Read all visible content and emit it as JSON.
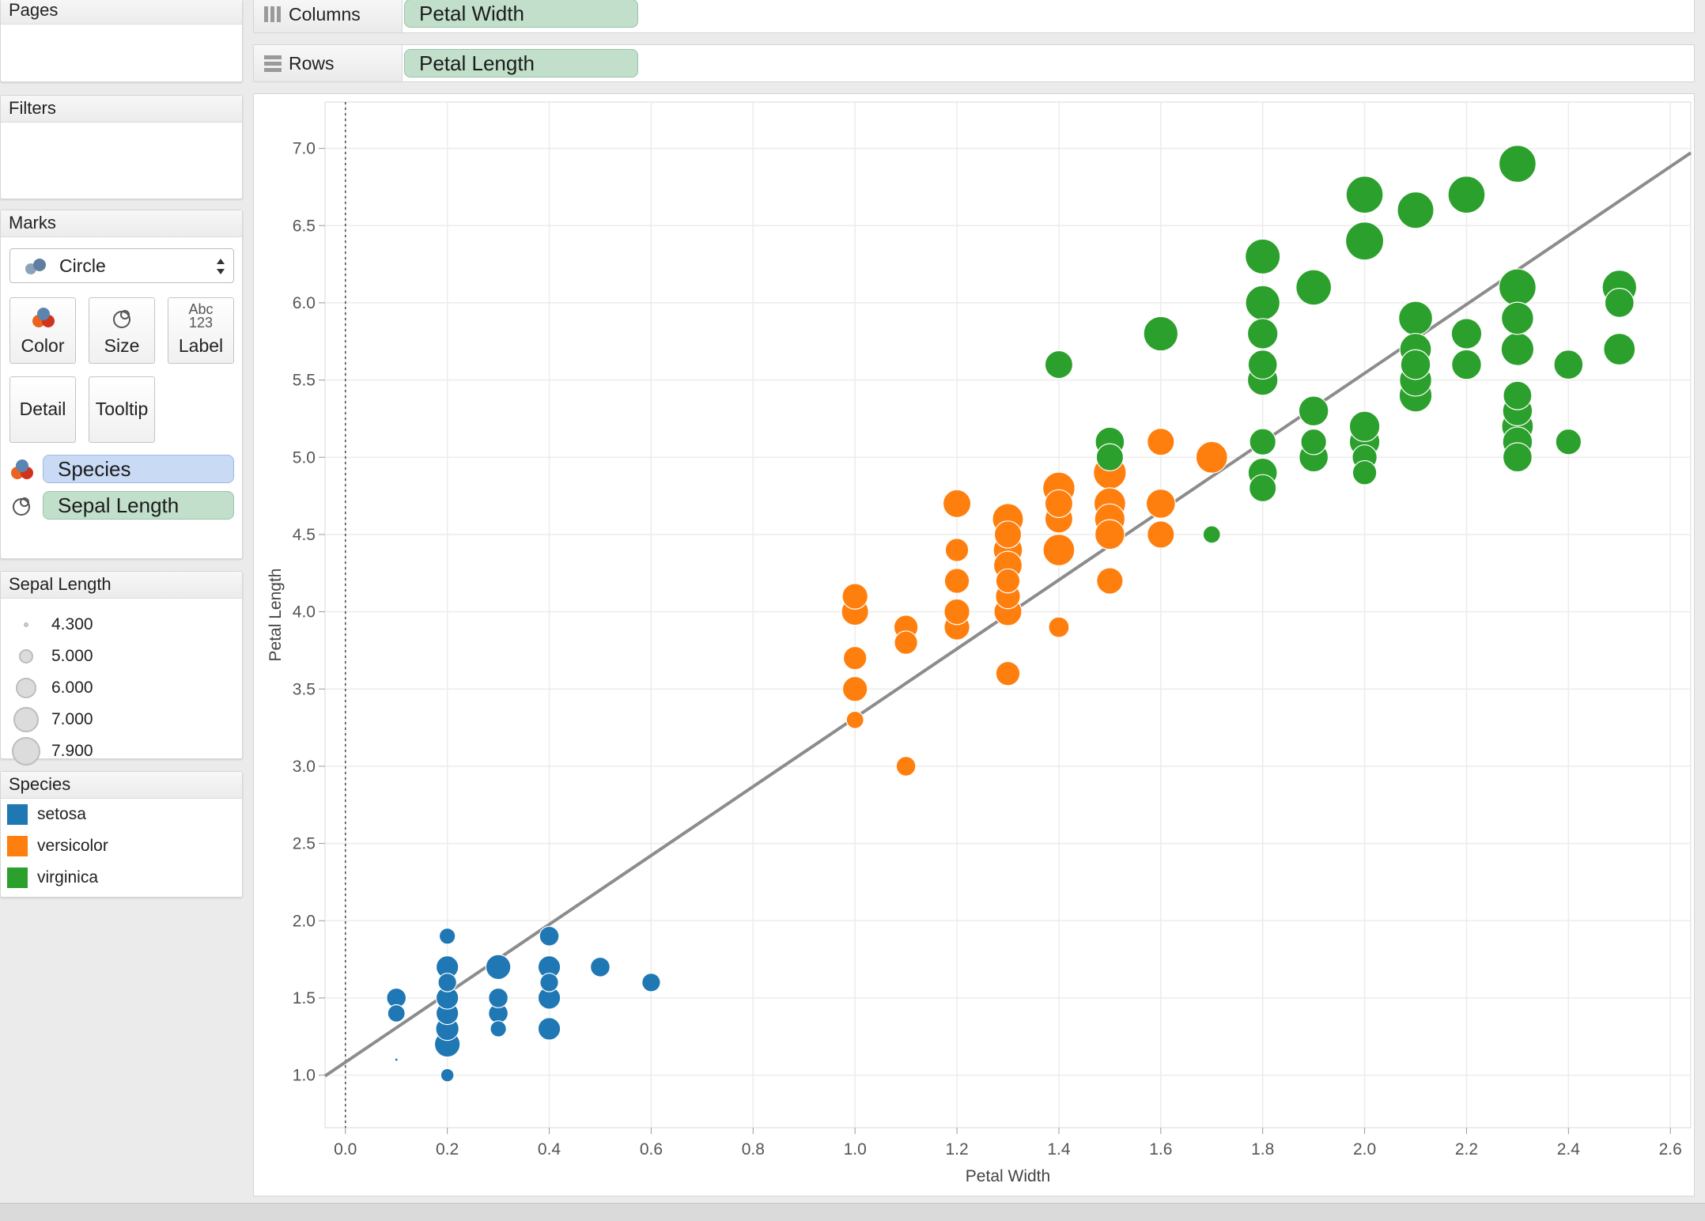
{
  "pages_card": {
    "title": "Pages"
  },
  "filters_card": {
    "title": "Filters"
  },
  "marks_card": {
    "title": "Marks",
    "mark_type": "Circle",
    "buttons": {
      "color": "Color",
      "size": "Size",
      "label": "Label",
      "label_icon_top": "Abc",
      "label_icon_bottom": "123",
      "detail": "Detail",
      "tooltip": "Tooltip"
    },
    "fields": {
      "color_field": "Species",
      "size_field": "Sepal Length"
    }
  },
  "size_legend": {
    "title": "Sepal Length",
    "items": [
      "4.300",
      "5.000",
      "6.000",
      "7.000",
      "7.900"
    ]
  },
  "species_legend": {
    "title": "Species",
    "items": [
      {
        "label": "setosa",
        "color": "#1f77b4"
      },
      {
        "label": "versicolor",
        "color": "#ff7f0e"
      },
      {
        "label": "virginica",
        "color": "#2ca02c"
      }
    ]
  },
  "shelves": {
    "columns_label": "Columns",
    "columns_pill": "Petal Width",
    "rows_label": "Rows",
    "rows_pill": "Petal Length"
  },
  "chart_data": {
    "type": "scatter",
    "xlabel": "Petal Width",
    "ylabel": "Petal Length",
    "xlim": [
      -0.04,
      2.64
    ],
    "ylim": [
      0.66,
      7.3
    ],
    "xticks": [
      0.0,
      0.2,
      0.4,
      0.6,
      0.8,
      1.0,
      1.2,
      1.4,
      1.6,
      1.8,
      2.0,
      2.2,
      2.4,
      2.6
    ],
    "yticks": [
      1.0,
      1.5,
      2.0,
      2.5,
      3.0,
      3.5,
      4.0,
      4.5,
      5.0,
      5.5,
      6.0,
      6.5,
      7.0
    ],
    "size_field": "Sepal Length",
    "size_range": [
      4.3,
      7.9
    ],
    "trend_line": {
      "intercept": 1.084,
      "slope": 2.23,
      "color": "#8c8c8c"
    },
    "zero_line_x": 0.0,
    "grid": true,
    "series": [
      {
        "name": "setosa",
        "color": "#1f77b4",
        "points": [
          [
            0.1,
            1.1,
            4.3
          ],
          [
            0.1,
            1.4,
            4.9
          ],
          [
            0.1,
            1.5,
            5.1
          ],
          [
            0.2,
            1.0,
            4.6
          ],
          [
            0.2,
            1.2,
            5.8
          ],
          [
            0.2,
            1.3,
            5.5
          ],
          [
            0.2,
            1.4,
            5.4
          ],
          [
            0.2,
            1.5,
            5.4
          ],
          [
            0.2,
            1.6,
            5.0
          ],
          [
            0.2,
            1.7,
            5.4
          ],
          [
            0.2,
            1.9,
            4.8
          ],
          [
            0.3,
            1.3,
            4.8
          ],
          [
            0.3,
            1.4,
            5.1
          ],
          [
            0.3,
            1.5,
            5.1
          ],
          [
            0.3,
            1.7,
            5.7
          ],
          [
            0.4,
            1.3,
            5.4
          ],
          [
            0.4,
            1.5,
            5.4
          ],
          [
            0.4,
            1.6,
            5.0
          ],
          [
            0.4,
            1.7,
            5.4
          ],
          [
            0.4,
            1.9,
            5.1
          ],
          [
            0.5,
            1.7,
            5.1
          ],
          [
            0.6,
            1.6,
            5.0
          ]
        ]
      },
      {
        "name": "versicolor",
        "color": "#ff7f0e",
        "points": [
          [
            1.0,
            3.3,
            4.9
          ],
          [
            1.0,
            3.5,
            5.7
          ],
          [
            1.0,
            3.7,
            5.5
          ],
          [
            1.0,
            4.0,
            6.0
          ],
          [
            1.0,
            4.1,
            5.8
          ],
          [
            1.1,
            3.0,
            5.1
          ],
          [
            1.1,
            3.8,
            5.5
          ],
          [
            1.1,
            3.9,
            5.6
          ],
          [
            1.2,
            3.9,
            5.8
          ],
          [
            1.2,
            4.0,
            5.8
          ],
          [
            1.2,
            4.2,
            5.7
          ],
          [
            1.2,
            4.4,
            5.5
          ],
          [
            1.2,
            4.7,
            6.1
          ],
          [
            1.3,
            3.6,
            5.6
          ],
          [
            1.3,
            4.0,
            6.1
          ],
          [
            1.3,
            4.1,
            5.7
          ],
          [
            1.3,
            4.2,
            5.6
          ],
          [
            1.3,
            4.3,
            6.2
          ],
          [
            1.3,
            4.4,
            6.3
          ],
          [
            1.3,
            4.5,
            6.0
          ],
          [
            1.3,
            4.6,
            6.6
          ],
          [
            1.4,
            3.9,
            5.2
          ],
          [
            1.4,
            4.4,
            6.7
          ],
          [
            1.4,
            4.6,
            6.1
          ],
          [
            1.4,
            4.7,
            6.1
          ],
          [
            1.4,
            4.8,
            6.8
          ],
          [
            1.5,
            4.2,
            5.9
          ],
          [
            1.5,
            4.5,
            6.4
          ],
          [
            1.5,
            4.6,
            6.5
          ],
          [
            1.5,
            4.7,
            6.7
          ],
          [
            1.5,
            4.9,
            6.9
          ],
          [
            1.6,
            4.5,
            6.0
          ],
          [
            1.6,
            4.7,
            6.3
          ],
          [
            1.6,
            5.1,
            6.0
          ],
          [
            1.7,
            5.0,
            6.7
          ],
          [
            1.8,
            4.8,
            5.9
          ]
        ]
      },
      {
        "name": "virginica",
        "color": "#2ca02c",
        "points": [
          [
            1.4,
            5.6,
            6.1
          ],
          [
            1.5,
            5.0,
            6.0
          ],
          [
            1.5,
            5.1,
            6.3
          ],
          [
            1.6,
            5.8,
            7.2
          ],
          [
            1.7,
            4.5,
            4.9
          ],
          [
            1.8,
            4.8,
            6.0
          ],
          [
            1.8,
            4.9,
            6.3
          ],
          [
            1.8,
            5.1,
            5.9
          ],
          [
            1.8,
            5.5,
            6.5
          ],
          [
            1.8,
            5.6,
            6.3
          ],
          [
            1.8,
            5.8,
            6.5
          ],
          [
            1.8,
            6.0,
            7.2
          ],
          [
            1.8,
            6.3,
            7.3
          ],
          [
            1.9,
            5.0,
            6.3
          ],
          [
            1.9,
            5.1,
            5.8
          ],
          [
            1.9,
            5.3,
            6.4
          ],
          [
            1.9,
            6.1,
            7.4
          ],
          [
            2.0,
            4.9,
            5.6
          ],
          [
            2.0,
            5.0,
            5.7
          ],
          [
            2.0,
            5.1,
            6.5
          ],
          [
            2.0,
            5.2,
            6.5
          ],
          [
            2.0,
            6.4,
            7.9
          ],
          [
            2.0,
            6.7,
            7.7
          ],
          [
            2.1,
            5.4,
            6.9
          ],
          [
            2.1,
            5.5,
            6.8
          ],
          [
            2.1,
            5.6,
            6.4
          ],
          [
            2.1,
            5.7,
            6.7
          ],
          [
            2.1,
            5.9,
            7.1
          ],
          [
            2.1,
            6.6,
            7.6
          ],
          [
            2.2,
            5.6,
            6.4
          ],
          [
            2.2,
            5.8,
            6.5
          ],
          [
            2.2,
            6.7,
            7.7
          ],
          [
            2.3,
            5.0,
            6.3
          ],
          [
            2.3,
            5.1,
            6.4
          ],
          [
            2.3,
            5.2,
            6.7
          ],
          [
            2.3,
            5.3,
            6.4
          ],
          [
            2.3,
            5.4,
            6.2
          ],
          [
            2.3,
            5.7,
            6.9
          ],
          [
            2.3,
            5.9,
            6.8
          ],
          [
            2.3,
            6.1,
            7.7
          ],
          [
            2.3,
            6.9,
            7.7
          ],
          [
            2.4,
            5.1,
            5.8
          ],
          [
            2.4,
            5.6,
            6.3
          ],
          [
            2.5,
            5.7,
            6.7
          ],
          [
            2.5,
            6.0,
            6.3
          ],
          [
            2.5,
            6.1,
            7.2
          ]
        ]
      }
    ]
  }
}
